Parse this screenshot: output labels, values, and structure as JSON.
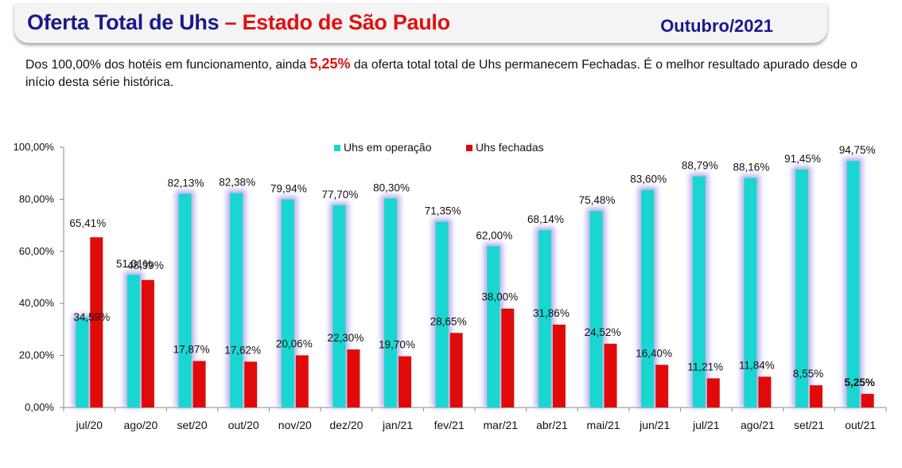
{
  "header": {
    "title_part1": "Oferta Total de Uhs",
    "title_sep": " – ",
    "title_part2": "Estado  de São Paulo",
    "period": "Outubro/2021"
  },
  "description": {
    "before": "Dos 100,00% dos hotéis em funcionamento, ainda ",
    "highlight": "5,25%",
    "after": " da oferta total total de Uhs permanecem Fechadas. É o melhor resultado apurado desde o início desta série histórica."
  },
  "colors": {
    "operation": "#1ad6d0",
    "closed": "#e00a0a",
    "glow": "#a8a2e6",
    "title_blue": "#1a1a8a",
    "title_red": "#e01010"
  },
  "chart_data": {
    "type": "bar",
    "categories": [
      "jul/20",
      "ago/20",
      "set/20",
      "out/20",
      "nov/20",
      "dez/20",
      "jan/21",
      "fev/21",
      "mar/21",
      "abr/21",
      "mai/21",
      "jun/21",
      "jul/21",
      "ago/21",
      "set/21",
      "out/21"
    ],
    "series": [
      {
        "name": "Uhs em operação",
        "values": [
          34.59,
          51.01,
          82.13,
          82.38,
          79.94,
          77.7,
          80.3,
          71.35,
          62.0,
          68.14,
          75.48,
          83.6,
          88.79,
          88.16,
          91.45,
          94.75
        ],
        "labels": [
          "34,59%",
          "51,01%",
          "82,13%",
          "82,38%",
          "79,94%",
          "77,70%",
          "80,30%",
          "71,35%",
          "62,00%",
          "68,14%",
          "75,48%",
          "83,60%",
          "88,79%",
          "88,16%",
          "91,45%",
          "94,75%"
        ]
      },
      {
        "name": "Uhs fechadas",
        "values": [
          65.41,
          48.99,
          17.87,
          17.62,
          20.06,
          22.3,
          19.7,
          28.65,
          38.0,
          31.86,
          24.52,
          16.4,
          11.21,
          11.84,
          8.55,
          5.25
        ],
        "labels": [
          "65,41%",
          "48,99%",
          "17,87%",
          "17,62%",
          "20,06%",
          "22,30%",
          "19,70%",
          "28,65%",
          "38,00%",
          "31,86%",
          "24,52%",
          "16,40%",
          "11,21%",
          "11,84%",
          "8,55%",
          "5,25%"
        ]
      }
    ],
    "y_ticks": [
      "0,00%",
      "20,00%",
      "40,00%",
      "60,00%",
      "80,00%",
      "100,00%"
    ],
    "ylim": [
      0,
      100
    ],
    "legend_position": "top",
    "grid": false
  }
}
